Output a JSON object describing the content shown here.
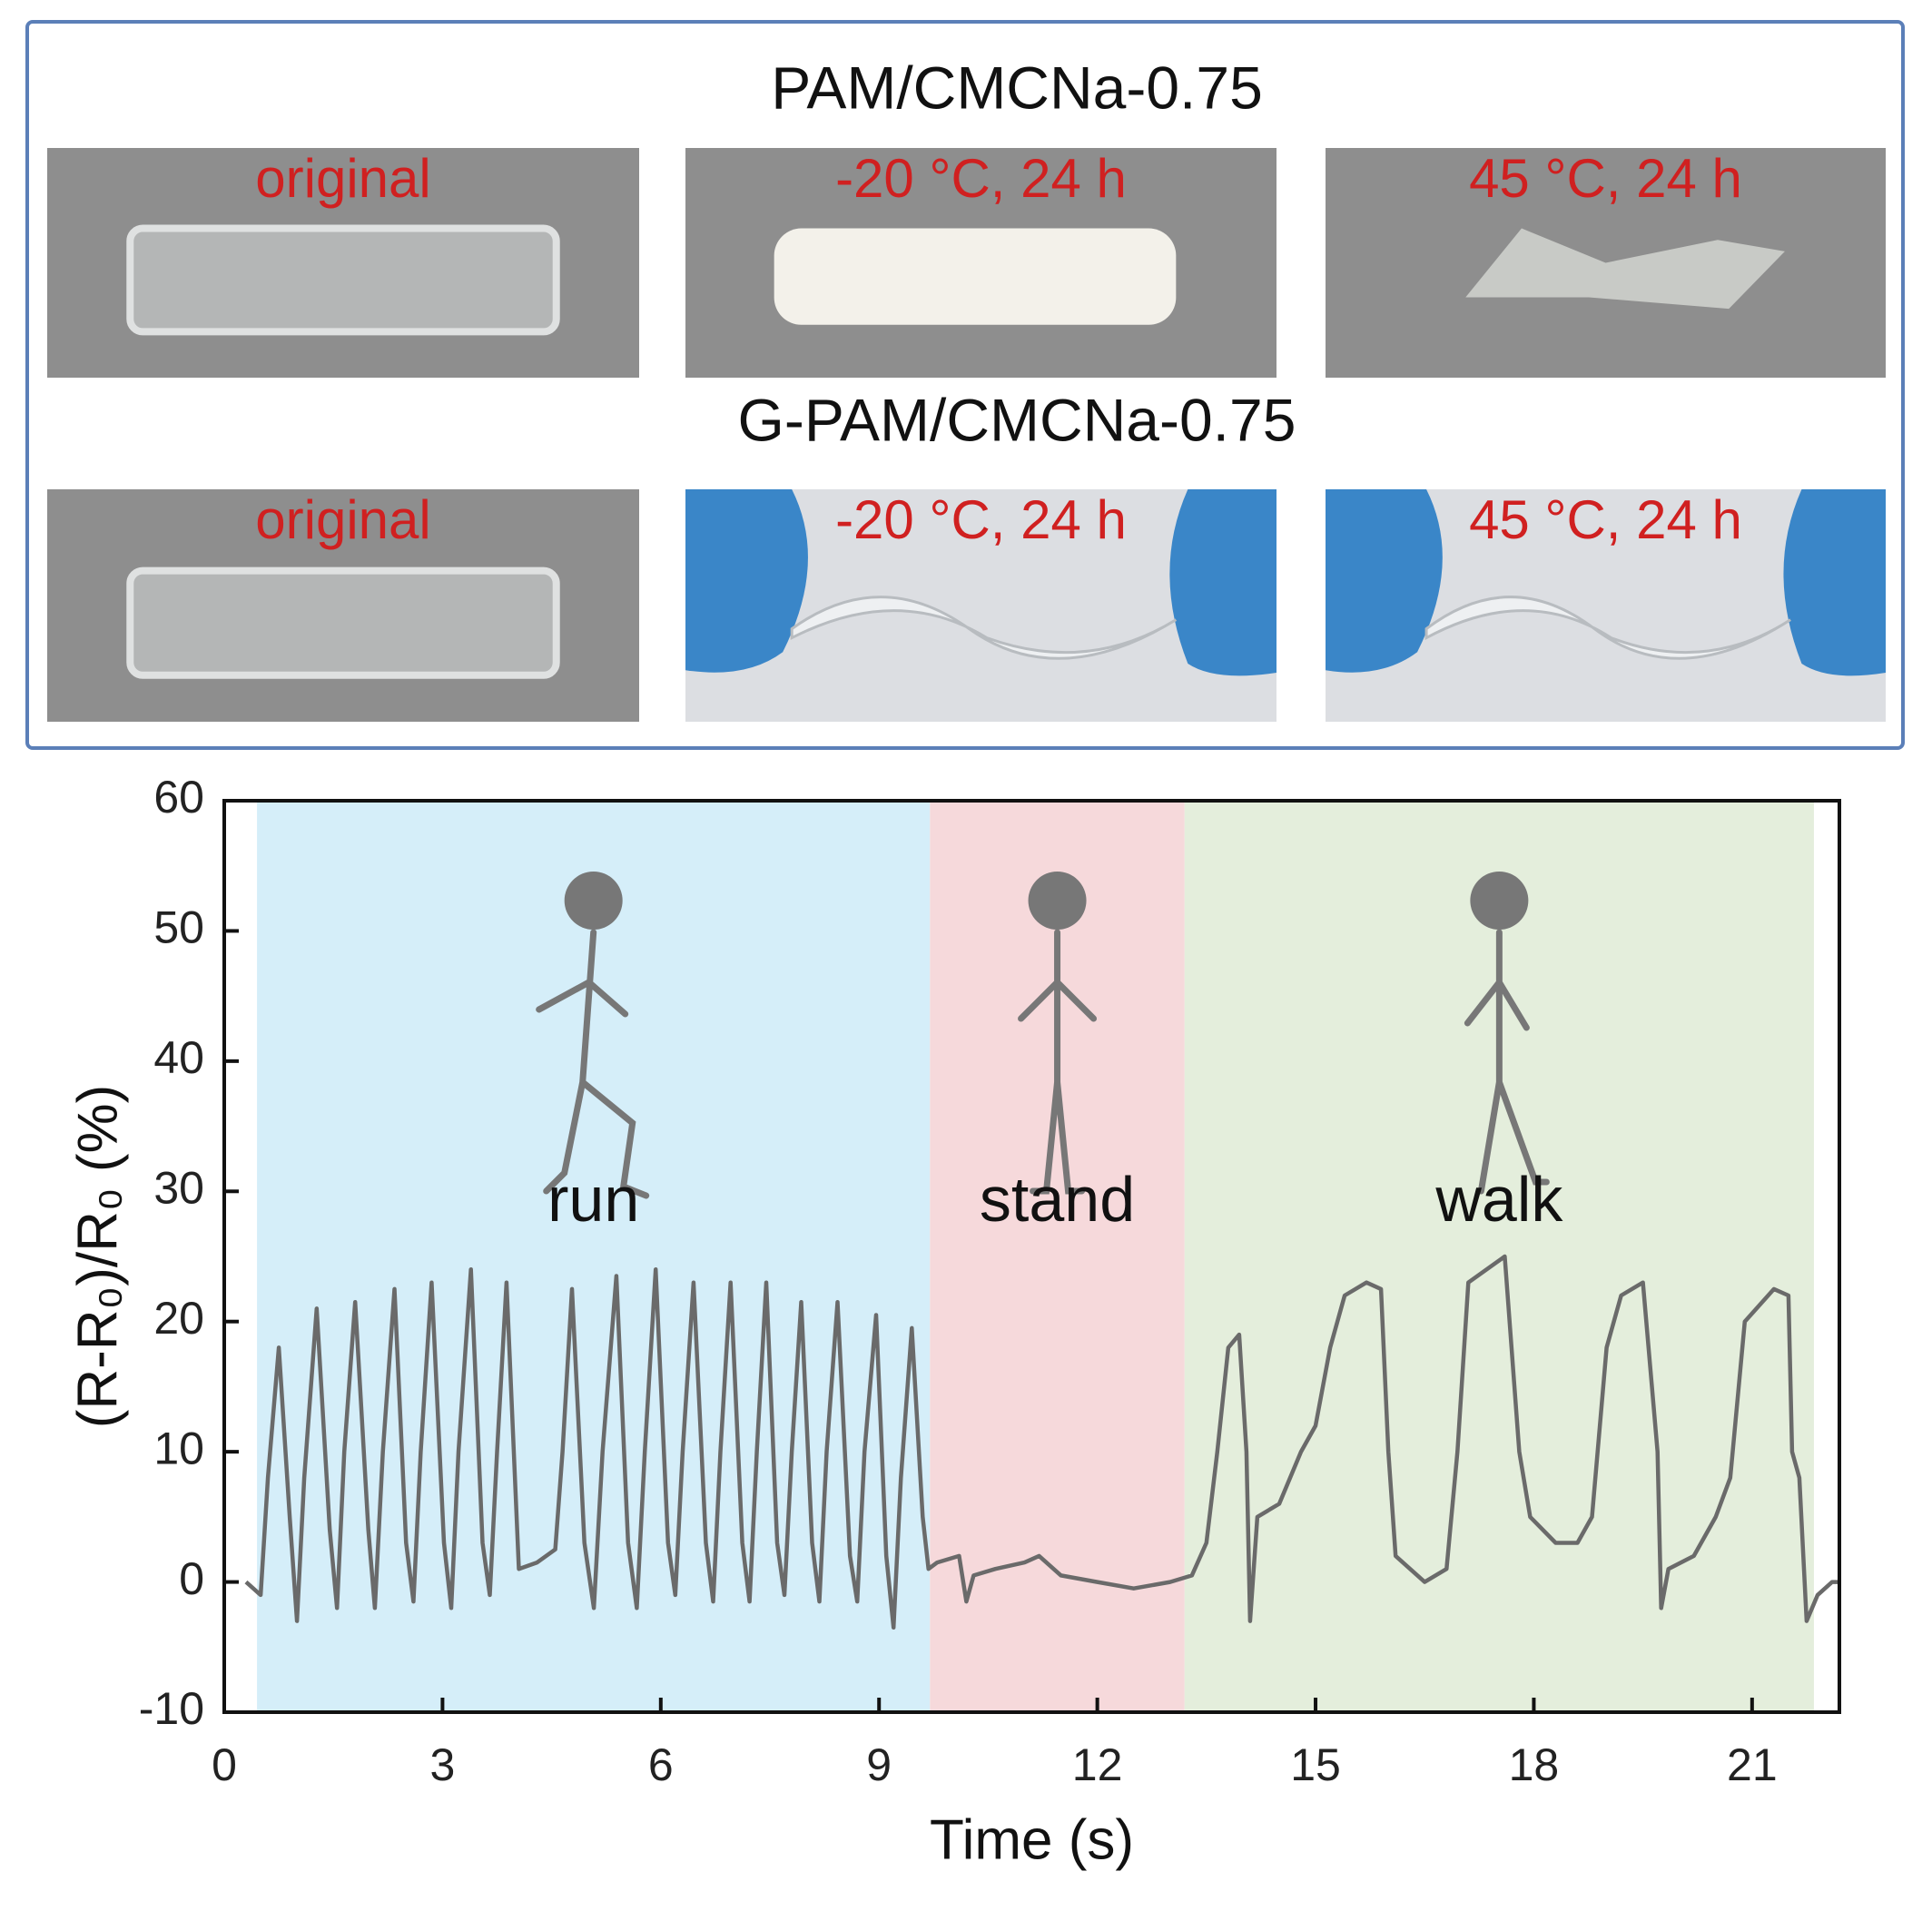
{
  "panel": {
    "rows": [
      {
        "title": "PAM/CMCNa-0.75",
        "labels": [
          "original",
          "-20 °C, 24 h",
          "45 °C, 24 h"
        ]
      },
      {
        "title": "G-PAM/CMCNa-0.75",
        "labels": [
          "original",
          "-20 °C, 24 h",
          "45 °C, 24 h"
        ]
      }
    ]
  },
  "chart_data": {
    "type": "line",
    "x_label": "Time (s)",
    "y_label": "(R-R₀)/R₀ (%)",
    "xlim": [
      0,
      22.2
    ],
    "xticks": [
      0,
      3,
      6,
      9,
      12,
      15,
      18,
      21
    ],
    "ylim": [
      -10,
      60
    ],
    "yticks": [
      -10,
      0,
      10,
      20,
      30,
      40,
      50,
      60
    ],
    "regions": [
      {
        "label": "run",
        "start": 0.45,
        "end": 9.7,
        "color": "#d5eef9"
      },
      {
        "label": "stand",
        "start": 9.7,
        "end": 13.2,
        "color": "#f6d9db"
      },
      {
        "label": "walk",
        "start": 13.2,
        "end": 21.85,
        "color": "#e4eedc"
      }
    ],
    "x": [
      0.3,
      0.5,
      0.6,
      0.75,
      0.9,
      1.0,
      1.1,
      1.27,
      1.45,
      1.55,
      1.65,
      1.8,
      1.98,
      2.07,
      2.18,
      2.34,
      2.5,
      2.6,
      2.7,
      2.85,
      3.02,
      3.12,
      3.22,
      3.39,
      3.55,
      3.65,
      3.75,
      3.88,
      4.05,
      4.3,
      4.55,
      4.65,
      4.78,
      4.95,
      5.08,
      5.2,
      5.39,
      5.55,
      5.67,
      5.78,
      5.93,
      6.1,
      6.2,
      6.3,
      6.45,
      6.62,
      6.72,
      6.82,
      6.96,
      7.12,
      7.22,
      7.32,
      7.45,
      7.6,
      7.7,
      7.8,
      7.93,
      8.08,
      8.18,
      8.28,
      8.43,
      8.6,
      8.7,
      8.8,
      8.96,
      9.1,
      9.2,
      9.3,
      9.45,
      9.6,
      9.68,
      9.8,
      10.1,
      10.2,
      10.3,
      10.6,
      11.0,
      11.2,
      11.5,
      12.0,
      12.5,
      13.0,
      13.3,
      13.5,
      13.65,
      13.8,
      13.95,
      14.05,
      14.1,
      14.2,
      14.5,
      14.8,
      15.0,
      15.2,
      15.4,
      15.7,
      15.9,
      16.0,
      16.1,
      16.5,
      16.8,
      16.95,
      17.1,
      17.6,
      17.8,
      17.95,
      18.3,
      18.6,
      18.8,
      19.0,
      19.2,
      19.5,
      19.7,
      19.75,
      19.85,
      20.2,
      20.5,
      20.7,
      20.9,
      21.3,
      21.5,
      21.55,
      21.65,
      21.75,
      21.9,
      22.1,
      22.2
    ],
    "series": [
      {
        "color": "#6a6a6a",
        "values": [
          0,
          -1,
          8,
          18,
          5,
          -3,
          8,
          21,
          4,
          -2,
          10,
          21.5,
          4,
          -2,
          10,
          22.5,
          3,
          -1.5,
          10,
          23,
          3,
          -2,
          10,
          24,
          3,
          -1,
          10,
          23,
          1,
          1.5,
          2.5,
          10,
          22.5,
          3,
          -2,
          10,
          23.5,
          3,
          -2,
          10,
          24,
          3,
          -1,
          10,
          23,
          3,
          -1.5,
          10,
          23,
          3,
          -1.5,
          10,
          23,
          3,
          -1,
          10,
          21.5,
          3,
          -1.5,
          10,
          21.5,
          2,
          -1.5,
          10,
          20.5,
          2,
          -3.5,
          8,
          19.5,
          5,
          1,
          1.5,
          2,
          -1.5,
          0.5,
          1,
          1.5,
          2,
          0.5,
          0,
          -0.5,
          0,
          0.5,
          3,
          10,
          18,
          19,
          10,
          -3,
          5,
          6,
          10,
          12,
          18,
          22,
          23,
          22.5,
          10,
          2,
          0,
          1,
          10,
          23,
          25,
          10,
          5,
          3,
          3,
          5,
          18,
          22,
          23,
          10,
          -2,
          1,
          2,
          5,
          8,
          20,
          22.5,
          22,
          10,
          8,
          -3,
          -1,
          0,
          0
        ]
      }
    ]
  }
}
